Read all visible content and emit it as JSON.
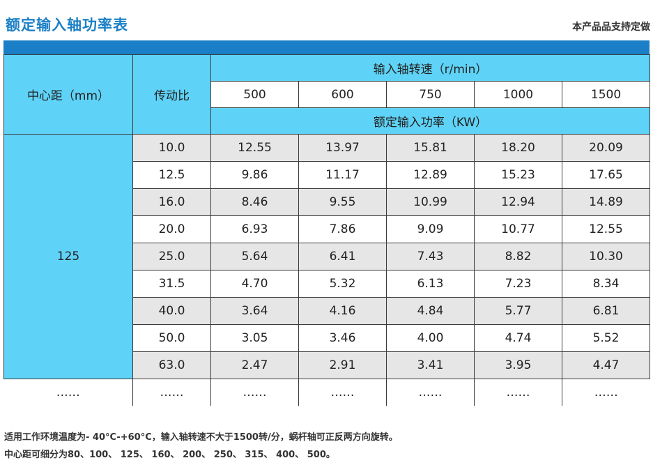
{
  "header": {
    "title": "额定输入轴功率表",
    "note": "本产品品支持定做"
  },
  "table": {
    "center_distance_label": "中心距（mm）",
    "ratio_label": "传动比",
    "speed_label": "输入轴转速（r/min）",
    "speeds": [
      "500",
      "600",
      "750",
      "1000",
      "1500"
    ],
    "power_label": "额定输入功率（KW）",
    "center_distance_value": "125",
    "rows": [
      {
        "ratio": "10.0",
        "values": [
          "12.55",
          "13.97",
          "15.81",
          "18.20",
          "20.09"
        ]
      },
      {
        "ratio": "12.5",
        "values": [
          "9.86",
          "11.17",
          "12.89",
          "15.23",
          "17.65"
        ]
      },
      {
        "ratio": "16.0",
        "values": [
          "8.46",
          "9.55",
          "10.99",
          "12.94",
          "14.89"
        ]
      },
      {
        "ratio": "20.0",
        "values": [
          "6.93",
          "7.86",
          "9.09",
          "10.77",
          "12.55"
        ]
      },
      {
        "ratio": "25.0",
        "values": [
          "5.64",
          "6.41",
          "7.43",
          "8.82",
          "10.30"
        ]
      },
      {
        "ratio": "31.5",
        "values": [
          "4.70",
          "5.32",
          "6.13",
          "7.23",
          "8.34"
        ]
      },
      {
        "ratio": "40.0",
        "values": [
          "3.64",
          "4.16",
          "4.84",
          "5.77",
          "6.81"
        ]
      },
      {
        "ratio": "50.0",
        "values": [
          "3.05",
          "3.46",
          "4.00",
          "4.74",
          "5.52"
        ]
      },
      {
        "ratio": "63.0",
        "values": [
          "2.47",
          "2.91",
          "3.41",
          "3.95",
          "4.47"
        ]
      }
    ],
    "ellipsis": "……"
  },
  "footer": {
    "line1": "适用工作环境温度为- 40°C-+60°C，输入轴转速不大于1500转/分，蜗杆轴可正反两方向旋转。",
    "line2": "中心距可细分为80、100、 125、 160、 200、 250、 315、 400、 500。"
  },
  "colors": {
    "accent": "#1a7fc6",
    "header_cyan": "#5fd3f7",
    "row_gray": "#e6e6e6"
  }
}
